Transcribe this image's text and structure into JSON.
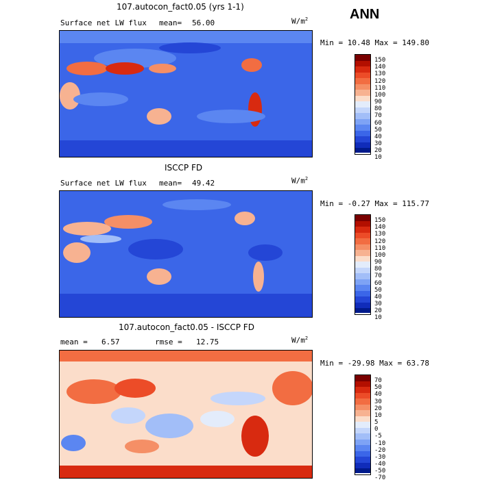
{
  "header": {
    "season": "ANN"
  },
  "units": "W/m",
  "units_sup": "2",
  "panels": [
    {
      "title": "107.autocon_fact0.05 (yrs 1-1)",
      "field": "Surface net LW flux",
      "stat_label": "mean=",
      "stat_value": "56.00",
      "minmax": "Min =  10.48 Max = 149.80",
      "levels": [
        "150",
        "140",
        "130",
        "120",
        "110",
        "100",
        "90",
        "80",
        "70",
        "60",
        "50",
        "40",
        "30",
        "20",
        "10"
      ],
      "colors": [
        "#7a0000",
        "#b30f00",
        "#d82a10",
        "#ec4c28",
        "#f26d42",
        "#f58f66",
        "#f7b291",
        "#fbddca",
        "#e3ecfb",
        "#c4d6fb",
        "#a2bef8",
        "#7ea3f5",
        "#5b86f1",
        "#3b66e8",
        "#2446d6",
        "#102cba",
        "#011a8b"
      ]
    },
    {
      "title": "ISCCP FD",
      "field": "Surface net LW flux",
      "stat_label": "mean=",
      "stat_value": "49.42",
      "minmax": "Min =  -0.27 Max = 115.77",
      "levels": [
        "150",
        "140",
        "130",
        "120",
        "110",
        "100",
        "90",
        "80",
        "70",
        "60",
        "50",
        "40",
        "30",
        "20",
        "10"
      ],
      "colors": [
        "#7a0000",
        "#b30f00",
        "#d82a10",
        "#ec4c28",
        "#f26d42",
        "#f58f66",
        "#f7b291",
        "#fbddca",
        "#e3ecfb",
        "#c4d6fb",
        "#a2bef8",
        "#7ea3f5",
        "#5b86f1",
        "#3b66e8",
        "#2446d6",
        "#102cba",
        "#011a8b"
      ]
    },
    {
      "title": "107.autocon_fact0.05 - ISCCP FD",
      "stat_label": "mean =",
      "stat_value": "6.57",
      "rmse_label": "rmse =",
      "rmse_value": "12.75",
      "minmax": "Min = -29.98 Max =  63.78",
      "levels": [
        "70",
        "50",
        "40",
        "30",
        "20",
        "10",
        "5",
        "0",
        "-5",
        "-10",
        "-20",
        "-30",
        "-40",
        "-50",
        "-70"
      ],
      "colors": [
        "#7a0000",
        "#b30f00",
        "#d82a10",
        "#ec4c28",
        "#f26d42",
        "#f58f66",
        "#f7b291",
        "#fbddca",
        "#e3ecfb",
        "#c4d6fb",
        "#a2bef8",
        "#7ea3f5",
        "#5b86f1",
        "#3b66e8",
        "#2446d6",
        "#102cba",
        "#011a8b"
      ]
    }
  ]
}
